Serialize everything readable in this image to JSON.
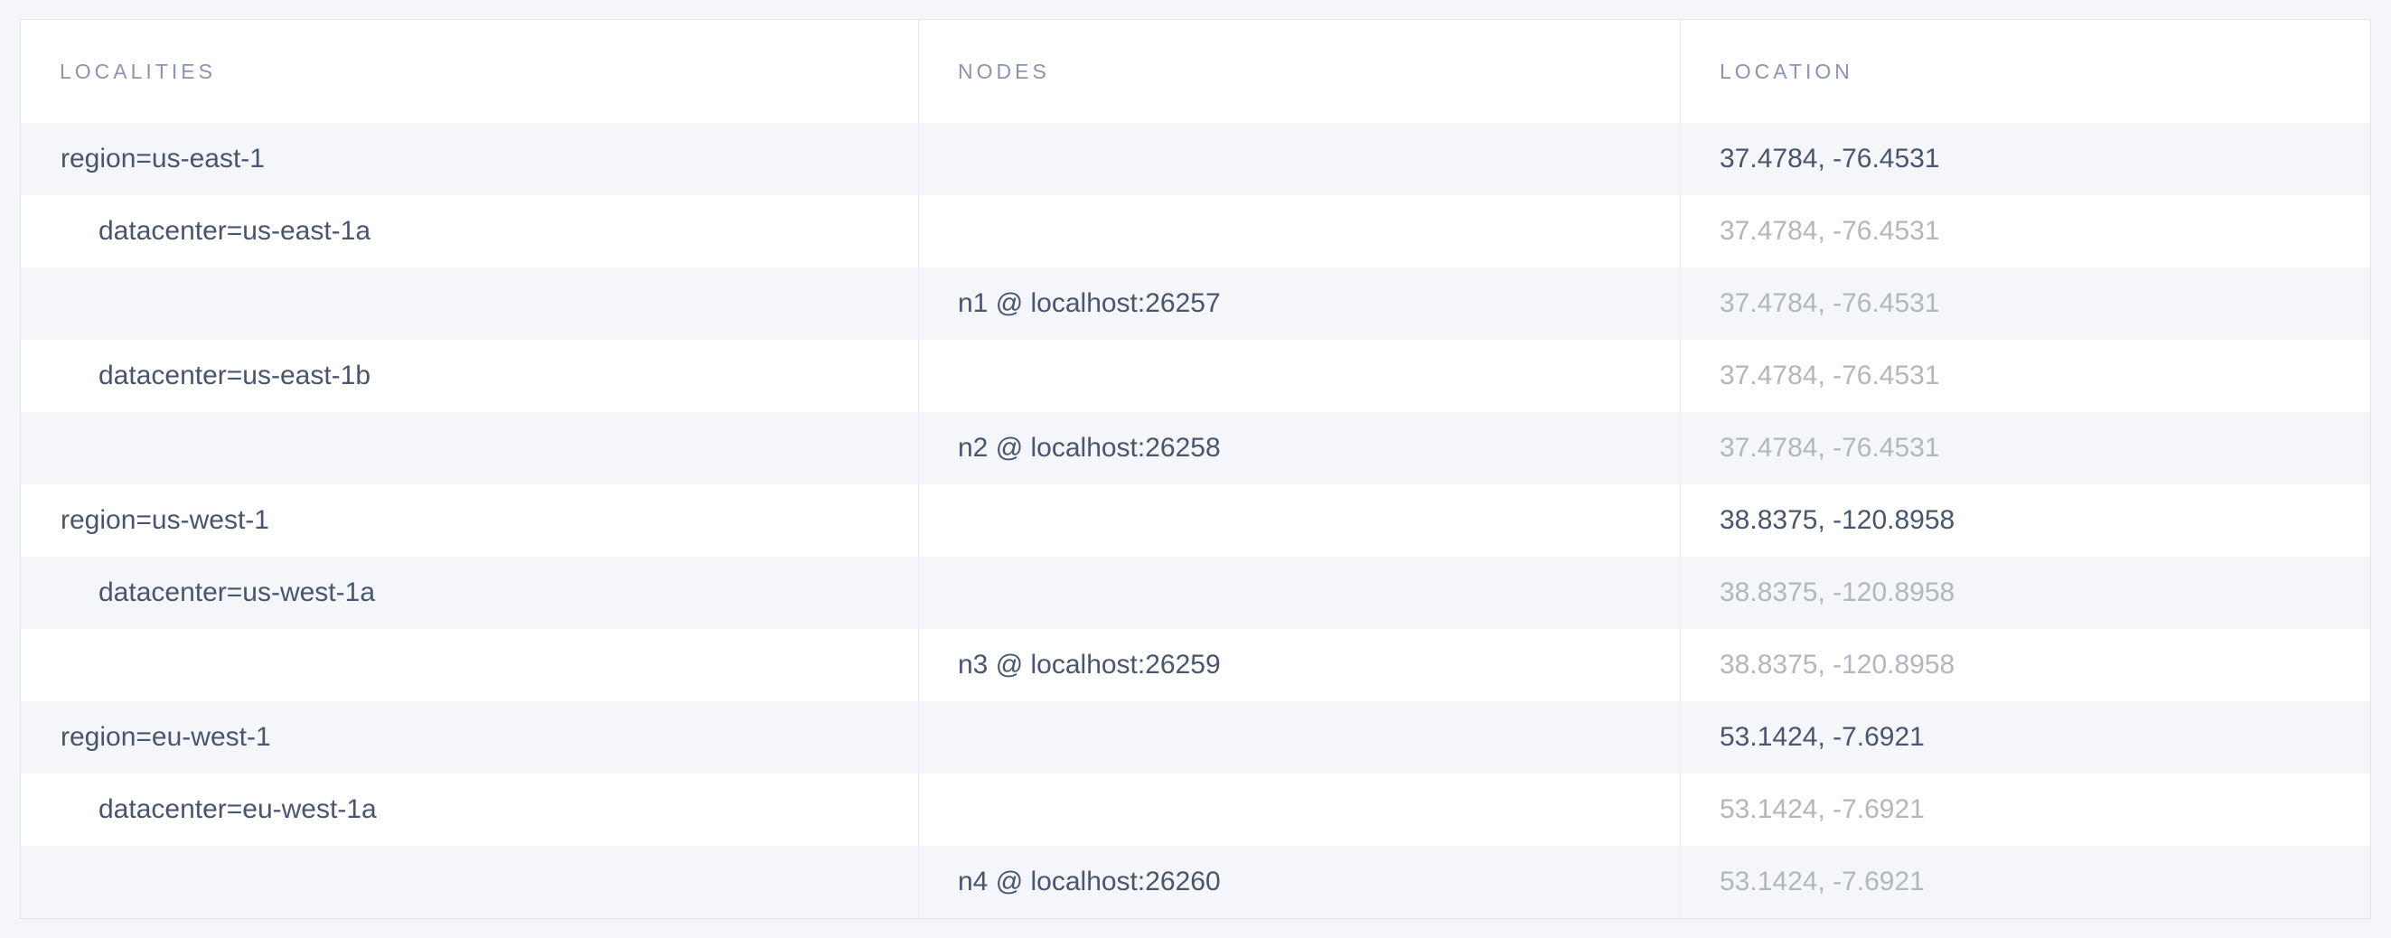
{
  "page": {
    "background_color": "#f4f6f9"
  },
  "colors": {
    "row_stripe": "#f4f6f9",
    "row_plain": "#ffffff",
    "table_border": "#e0e5ec",
    "column_divider": "#e6eaf0",
    "header_text": "#8a94b2",
    "text_primary": "#48556e",
    "text_muted": "#b1b6bf"
  },
  "table": {
    "columns": [
      {
        "key": "localities",
        "label": "Localities"
      },
      {
        "key": "nodes",
        "label": "Nodes"
      },
      {
        "key": "location",
        "label": "Location"
      }
    ],
    "rows": [
      {
        "locality": "region=us-east-1",
        "node": "",
        "location": "37.4784, -76.4531"
      },
      {
        "locality": "datacenter=us-east-1a",
        "node": "",
        "location": "37.4784, -76.4531"
      },
      {
        "locality": "",
        "node": "n1 @ localhost:26257",
        "location": "37.4784, -76.4531"
      },
      {
        "locality": "datacenter=us-east-1b",
        "node": "",
        "location": "37.4784, -76.4531"
      },
      {
        "locality": "",
        "node": "n2 @ localhost:26258",
        "location": "37.4784, -76.4531"
      },
      {
        "locality": "region=us-west-1",
        "node": "",
        "location": "38.8375, -120.8958"
      },
      {
        "locality": "datacenter=us-west-1a",
        "node": "",
        "location": "38.8375, -120.8958"
      },
      {
        "locality": "",
        "node": "n3 @ localhost:26259",
        "location": "38.8375, -120.8958"
      },
      {
        "locality": "region=eu-west-1",
        "node": "",
        "location": "53.1424, -7.6921"
      },
      {
        "locality": "datacenter=eu-west-1a",
        "node": "",
        "location": "53.1424, -7.6921"
      },
      {
        "locality": "",
        "node": "n4 @ localhost:26260",
        "location": "53.1424, -7.6921"
      }
    ]
  }
}
